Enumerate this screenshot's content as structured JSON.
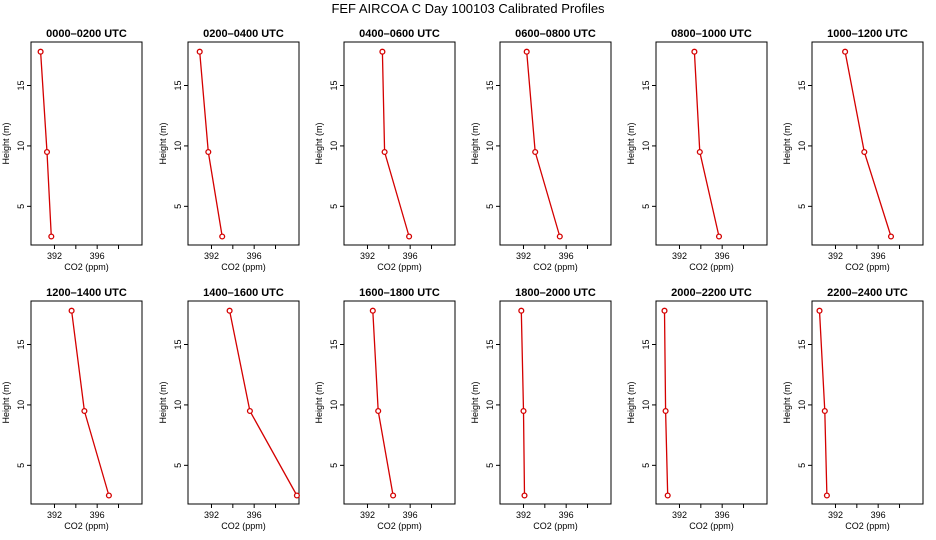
{
  "title": "FEF AIRCOA C  Day 100103  Calibrated Profiles",
  "chart_data": {
    "type": "line",
    "xlabel": "CO2 (ppm)",
    "ylabel": "Height (m)",
    "xlim": [
      389.8,
      400.2
    ],
    "ylim": [
      1.8,
      18.6
    ],
    "xticks": [
      392,
      396
    ],
    "yticks": [
      5,
      10,
      15
    ],
    "heights": [
      17.8,
      9.5,
      2.5
    ],
    "series_color": "#d40000",
    "panels": [
      {
        "title": "0000–0200 UTC",
        "co2": [
          390.7,
          391.3,
          391.7
        ]
      },
      {
        "title": "0200–0400 UTC",
        "co2": [
          390.9,
          391.7,
          393.0
        ]
      },
      {
        "title": "0400–0600 UTC",
        "co2": [
          393.4,
          393.6,
          395.9
        ]
      },
      {
        "title": "0600–0800 UTC",
        "co2": [
          392.3,
          393.1,
          395.4
        ]
      },
      {
        "title": "0800–1000 UTC",
        "co2": [
          393.4,
          393.9,
          395.7
        ]
      },
      {
        "title": "1000–1200 UTC",
        "co2": [
          392.9,
          394.7,
          397.2
        ]
      },
      {
        "title": "1200–1400 UTC",
        "co2": [
          393.6,
          394.8,
          397.1
        ]
      },
      {
        "title": "1400–1600 UTC",
        "co2": [
          393.7,
          395.6,
          400.0
        ]
      },
      {
        "title": "1600–1800 UTC",
        "co2": [
          392.5,
          393.0,
          394.4
        ]
      },
      {
        "title": "1800–2000 UTC",
        "co2": [
          391.8,
          392.0,
          392.1
        ]
      },
      {
        "title": "2000–2200 UTC",
        "co2": [
          390.6,
          390.7,
          390.9
        ]
      },
      {
        "title": "2200–2400 UTC",
        "co2": [
          390.5,
          391.0,
          391.2
        ]
      }
    ]
  }
}
